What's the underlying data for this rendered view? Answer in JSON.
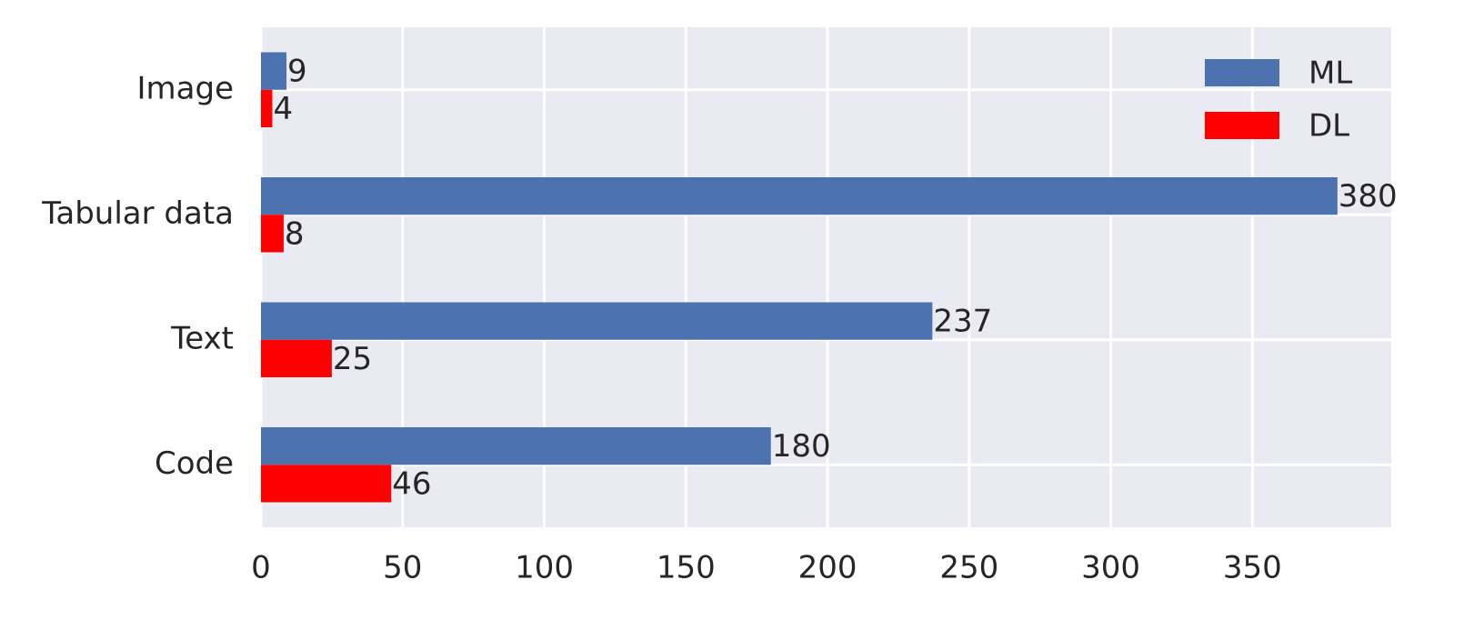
{
  "chart_data": {
    "type": "barh",
    "categories": [
      "Image",
      "Tabular data",
      "Text",
      "Code"
    ],
    "series": [
      {
        "name": "ML",
        "color": "#4c72b0",
        "values": [
          9,
          380,
          237,
          180
        ]
      },
      {
        "name": "DL",
        "color": "#ff0000",
        "values": [
          4,
          8,
          25,
          46
        ]
      }
    ],
    "xlim": [
      0,
      399
    ],
    "xticks": [
      0,
      50,
      100,
      150,
      200,
      250,
      300,
      350
    ],
    "grid": true,
    "legend": "upper right"
  }
}
